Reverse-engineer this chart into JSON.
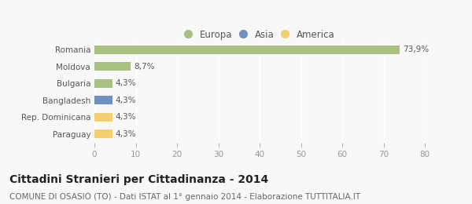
{
  "categories": [
    "Romania",
    "Moldova",
    "Bulgaria",
    "Bangladesh",
    "Rep. Dominicana",
    "Paraguay"
  ],
  "values": [
    73.9,
    8.7,
    4.3,
    4.3,
    4.3,
    4.3
  ],
  "labels": [
    "73,9%",
    "8,7%",
    "4,3%",
    "4,3%",
    "4,3%",
    "4,3%"
  ],
  "colors": [
    "#a8c080",
    "#a8c080",
    "#a8c080",
    "#7090c0",
    "#f0d070",
    "#f0d070"
  ],
  "legend_labels": [
    "Europa",
    "Asia",
    "America"
  ],
  "legend_colors": [
    "#a8c080",
    "#7090c0",
    "#f0d070"
  ],
  "xlim": [
    0,
    80
  ],
  "xticks": [
    0,
    10,
    20,
    30,
    40,
    50,
    60,
    70,
    80
  ],
  "title": "Cittadini Stranieri per Cittadinanza - 2014",
  "subtitle": "COMUNE DI OSASIO (TO) - Dati ISTAT al 1° gennaio 2014 - Elaborazione TUTTITALIA.IT",
  "bg_color": "#f8f8f8",
  "bar_height": 0.52,
  "title_fontsize": 10,
  "subtitle_fontsize": 7.5,
  "label_fontsize": 7.5,
  "ytick_fontsize": 7.5,
  "xtick_fontsize": 7.5,
  "legend_fontsize": 8.5
}
